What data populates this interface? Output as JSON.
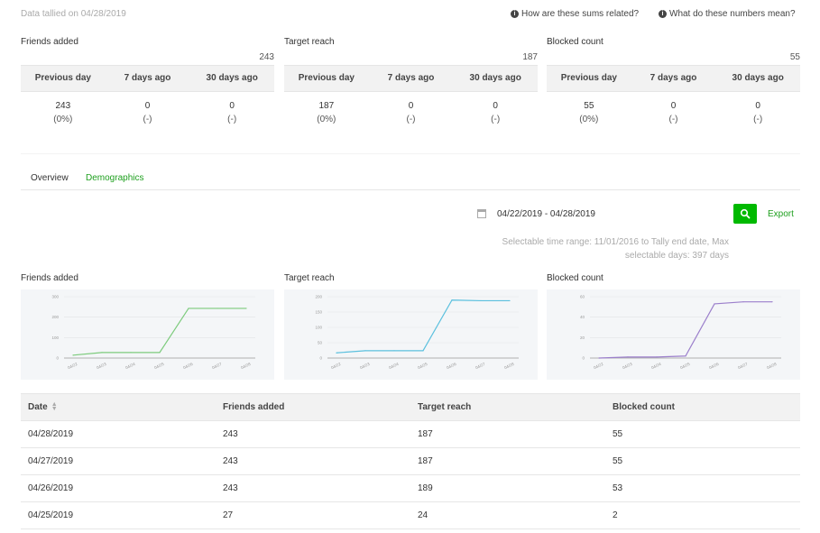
{
  "header": {
    "tally_text": "Data tallied on 04/28/2019",
    "help_links": [
      {
        "label": "How are these sums related?"
      },
      {
        "label": "What do these numbers mean?"
      }
    ]
  },
  "stats": [
    {
      "title": "Friends added",
      "total": "243",
      "columns": [
        "Previous day",
        "7 days ago",
        "30 days ago"
      ],
      "values": [
        {
          "value": "243",
          "change": "(0%)"
        },
        {
          "value": "0",
          "change": "(-)"
        },
        {
          "value": "0",
          "change": "(-)"
        }
      ]
    },
    {
      "title": "Target reach",
      "total": "187",
      "columns": [
        "Previous day",
        "7 days ago",
        "30 days ago"
      ],
      "values": [
        {
          "value": "187",
          "change": "(0%)"
        },
        {
          "value": "0",
          "change": "(-)"
        },
        {
          "value": "0",
          "change": "(-)"
        }
      ]
    },
    {
      "title": "Blocked count",
      "total": "55",
      "columns": [
        "Previous day",
        "7 days ago",
        "30 days ago"
      ],
      "values": [
        {
          "value": "55",
          "change": "(0%)"
        },
        {
          "value": "0",
          "change": "(-)"
        },
        {
          "value": "0",
          "change": "(-)"
        }
      ]
    }
  ],
  "tabs": [
    {
      "label": "Overview",
      "active": false
    },
    {
      "label": "Demographics",
      "active": true
    }
  ],
  "filter": {
    "date_range": "04/22/2019 - 04/28/2019",
    "export_label": "Export",
    "range_note_line1": "Selectable time range: 11/01/2016 to Tally end date, Max",
    "range_note_line2": "selectable days: 397 days"
  },
  "colors": {
    "accent": "#00b900",
    "friends_line": "#7ccb7c",
    "reach_line": "#5bc0de",
    "blocked_line": "#9b7fcb"
  },
  "chart_data": [
    {
      "type": "line",
      "title": "Friends added",
      "x": [
        "04/22",
        "04/23",
        "04/24",
        "04/25",
        "04/26",
        "04/27",
        "04/28"
      ],
      "y_ticks": [
        "0",
        "100",
        "200",
        "300"
      ],
      "ylim": [
        0,
        300
      ],
      "series": [
        {
          "values": [
            14,
            27,
            27,
            27,
            243,
            243,
            243
          ]
        }
      ],
      "color": "#7ccb7c",
      "grid": true
    },
    {
      "type": "line",
      "title": "Target reach",
      "x": [
        "04/22",
        "04/23",
        "04/24",
        "04/25",
        "04/26",
        "04/27",
        "04/28"
      ],
      "y_ticks": [
        "0",
        "50",
        "100",
        "150",
        "200"
      ],
      "ylim": [
        0,
        200
      ],
      "series": [
        {
          "values": [
            17,
            24,
            24,
            24,
            189,
            187,
            187
          ]
        }
      ],
      "color": "#5bc0de",
      "grid": true
    },
    {
      "type": "line",
      "title": "Blocked count",
      "x": [
        "04/22",
        "04/23",
        "04/24",
        "04/25",
        "04/26",
        "04/27",
        "04/28"
      ],
      "y_ticks": [
        "0",
        "20",
        "40",
        "60"
      ],
      "ylim": [
        0,
        60
      ],
      "series": [
        {
          "values": [
            0,
            1,
            1,
            2,
            53,
            55,
            55
          ]
        }
      ],
      "color": "#9b7fcb",
      "grid": true
    }
  ],
  "table": {
    "columns": [
      "Date",
      "Friends added",
      "Target reach",
      "Blocked count"
    ],
    "rows": [
      [
        "04/28/2019",
        "243",
        "187",
        "55"
      ],
      [
        "04/27/2019",
        "243",
        "187",
        "55"
      ],
      [
        "04/26/2019",
        "243",
        "189",
        "53"
      ],
      [
        "04/25/2019",
        "27",
        "24",
        "2"
      ]
    ]
  }
}
